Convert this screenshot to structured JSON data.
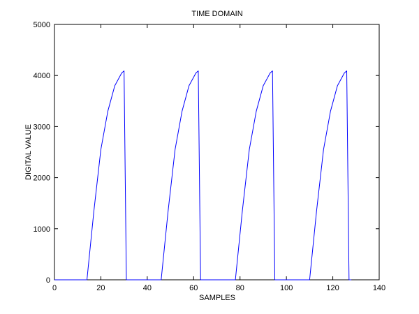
{
  "chart_data": {
    "type": "line",
    "title": "TIME DOMAIN",
    "xlabel": "SAMPLES",
    "ylabel": "DIGITAL VALUE",
    "xlim": [
      0,
      140
    ],
    "ylim": [
      0,
      5000
    ],
    "xticks": [
      0,
      20,
      40,
      60,
      80,
      100,
      120,
      140
    ],
    "yticks": [
      0,
      1000,
      2000,
      3000,
      4000,
      5000
    ],
    "grid": false,
    "series": [
      {
        "color": "#0000ff",
        "x": [
          0,
          14,
          17,
          20,
          23,
          26,
          29,
          30,
          31,
          46,
          49,
          52,
          55,
          58,
          61,
          62,
          63,
          78,
          81,
          84,
          87,
          90,
          93,
          94,
          95,
          110,
          113,
          116,
          119,
          122,
          125,
          126,
          127,
          128
        ],
        "y": [
          0,
          0,
          1350,
          2550,
          3300,
          3800,
          4050,
          4090,
          0,
          0,
          1350,
          2550,
          3300,
          3800,
          4050,
          4090,
          0,
          0,
          1350,
          2550,
          3300,
          3800,
          4050,
          4090,
          0,
          0,
          1350,
          2550,
          3300,
          3800,
          4050,
          4090,
          0,
          0
        ]
      }
    ]
  }
}
